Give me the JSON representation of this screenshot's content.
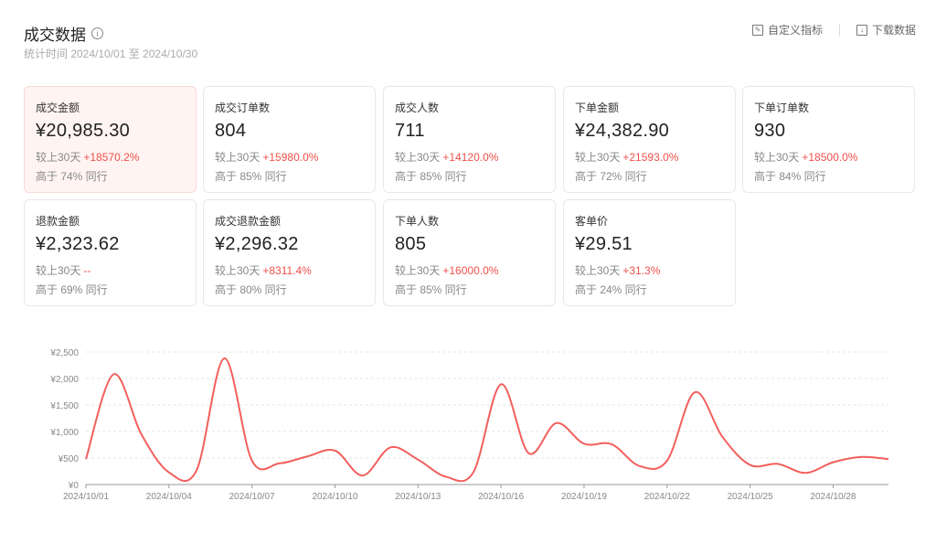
{
  "header": {
    "title": "成交数据",
    "info_icon": "info-icon",
    "subtitle": "统计时间 2024/10/01 至 2024/10/30",
    "custom_label": "自定义指标",
    "download_label": "下载数据"
  },
  "cards": [
    {
      "label": "成交金额",
      "value": "¥20,985.30",
      "compare_label": "较上30天",
      "change": "+18570.2%",
      "peer": "高于 74% 同行",
      "active": true
    },
    {
      "label": "成交订单数",
      "value": "804",
      "compare_label": "较上30天",
      "change": "+15980.0%",
      "peer": "高于 85% 同行"
    },
    {
      "label": "成交人数",
      "value": "711",
      "compare_label": "较上30天",
      "change": "+14120.0%",
      "peer": "高于 85% 同行"
    },
    {
      "label": "下单金额",
      "value": "¥24,382.90",
      "compare_label": "较上30天",
      "change": "+21593.0%",
      "peer": "高于 72% 同行"
    },
    {
      "label": "下单订单数",
      "value": "930",
      "compare_label": "较上30天",
      "change": "+18500.0%",
      "peer": "高于 84% 同行"
    },
    {
      "label": "退款金额",
      "value": "¥2,323.62",
      "compare_label": "较上30天",
      "change": "--",
      "peer": "高于 69% 同行"
    },
    {
      "label": "成交退款金额",
      "value": "¥2,296.32",
      "compare_label": "较上30天",
      "change": "+8311.4%",
      "peer": "高于 80% 同行"
    },
    {
      "label": "下单人数",
      "value": "805",
      "compare_label": "较上30天",
      "change": "+16000.0%",
      "peer": "高于 85% 同行"
    },
    {
      "label": "客单价",
      "value": "¥29.51",
      "compare_label": "较上30天",
      "change": "+31.3%",
      "peer": "高于 24% 同行"
    }
  ],
  "chart_data": {
    "type": "line",
    "color": "#f25f5c",
    "grid": true,
    "ylim": [
      0,
      2500
    ],
    "yticks": [
      "¥0",
      "¥500",
      "¥1,000",
      "¥1,500",
      "¥2,000",
      "¥2,500"
    ],
    "xticks": [
      "2024/10/01",
      "2024/10/04",
      "2024/10/07",
      "2024/10/10",
      "2024/10/13",
      "2024/10/16",
      "2024/10/19",
      "2024/10/22",
      "2024/10/25",
      "2024/10/28"
    ],
    "x": [
      "2024/10/01",
      "2024/10/02",
      "2024/10/03",
      "2024/10/04",
      "2024/10/05",
      "2024/10/06",
      "2024/10/07",
      "2024/10/08",
      "2024/10/09",
      "2024/10/10",
      "2024/10/11",
      "2024/10/12",
      "2024/10/13",
      "2024/10/14",
      "2024/10/15",
      "2024/10/16",
      "2024/10/17",
      "2024/10/18",
      "2024/10/19",
      "2024/10/20",
      "2024/10/21",
      "2024/10/22",
      "2024/10/23",
      "2024/10/24",
      "2024/10/25",
      "2024/10/26",
      "2024/10/27",
      "2024/10/28",
      "2024/10/29",
      "2024/10/30"
    ],
    "values": [
      480,
      2080,
      950,
      230,
      270,
      2380,
      450,
      400,
      530,
      640,
      170,
      700,
      470,
      150,
      230,
      1890,
      590,
      1160,
      770,
      760,
      350,
      450,
      1740,
      900,
      370,
      390,
      220,
      420,
      520,
      480
    ]
  }
}
